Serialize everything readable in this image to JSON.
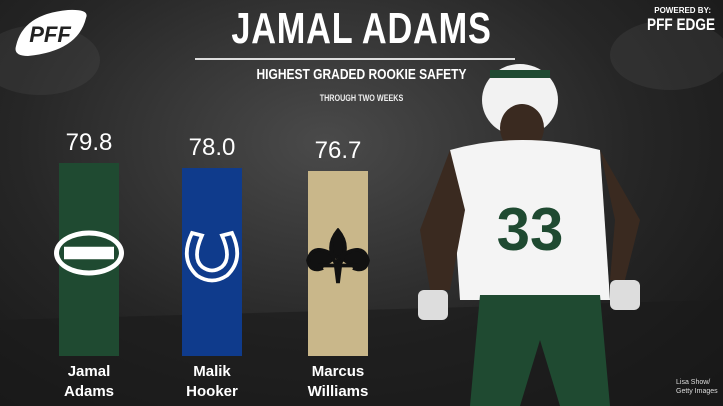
{
  "brand": {
    "logo": "PFF",
    "powered_by": "POWERED BY:",
    "product": "PFF EDGE"
  },
  "chart_data": {
    "type": "bar",
    "title": "JAMAL ADAMS",
    "subtitle": "HIGHEST GRADED ROOKIE SAFETY",
    "note": "THROUGH TWO WEEKS",
    "categories": [
      "Jamal Adams",
      "Malik Hooker",
      "Marcus Williams"
    ],
    "values": [
      79.8,
      78.0,
      76.7
    ],
    "value_labels": [
      "79.8",
      "78.0",
      "76.7"
    ],
    "colors": [
      "#1f4a31",
      "#0f3b8c",
      "#c9b78a"
    ],
    "ylim": [
      0,
      80
    ]
  },
  "photo": {
    "jersey_number": "33",
    "credit": "Lisa Show/ Getty Images"
  }
}
